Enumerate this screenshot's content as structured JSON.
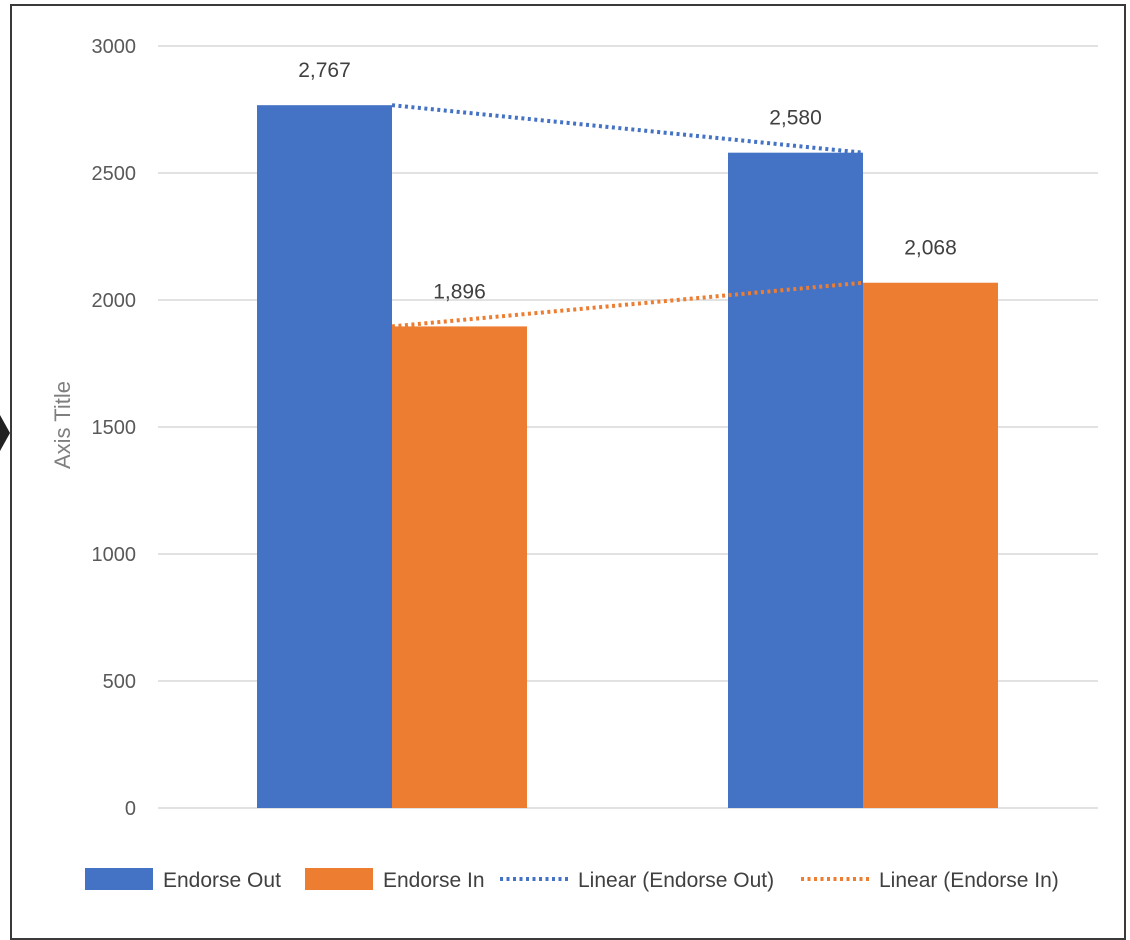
{
  "chart_data": {
    "type": "bar",
    "title": "",
    "xlabel": "",
    "ylabel": "Axis Title",
    "ylim": [
      0,
      3000
    ],
    "yticks": [
      0,
      500,
      1000,
      1500,
      2000,
      2500,
      3000
    ],
    "categories": [
      "",
      ""
    ],
    "grid": true,
    "legend_position": "bottom",
    "series": [
      {
        "name": "Endorse Out",
        "values": [
          2767,
          2580
        ],
        "labels": [
          "2,767",
          "2,580"
        ],
        "color": "#4472C4"
      },
      {
        "name": "Endorse In",
        "values": [
          1896,
          2068
        ],
        "labels": [
          "1,896",
          "2,068"
        ],
        "color": "#ED7D31"
      }
    ],
    "trendlines": [
      {
        "name": "Linear (Endorse Out)",
        "series": "Endorse Out",
        "type": "linear",
        "style": "dotted",
        "color": "#4472C4"
      },
      {
        "name": "Linear (Endorse In)",
        "series": "Endorse In",
        "type": "linear",
        "style": "dotted",
        "color": "#ED7D31"
      }
    ]
  }
}
